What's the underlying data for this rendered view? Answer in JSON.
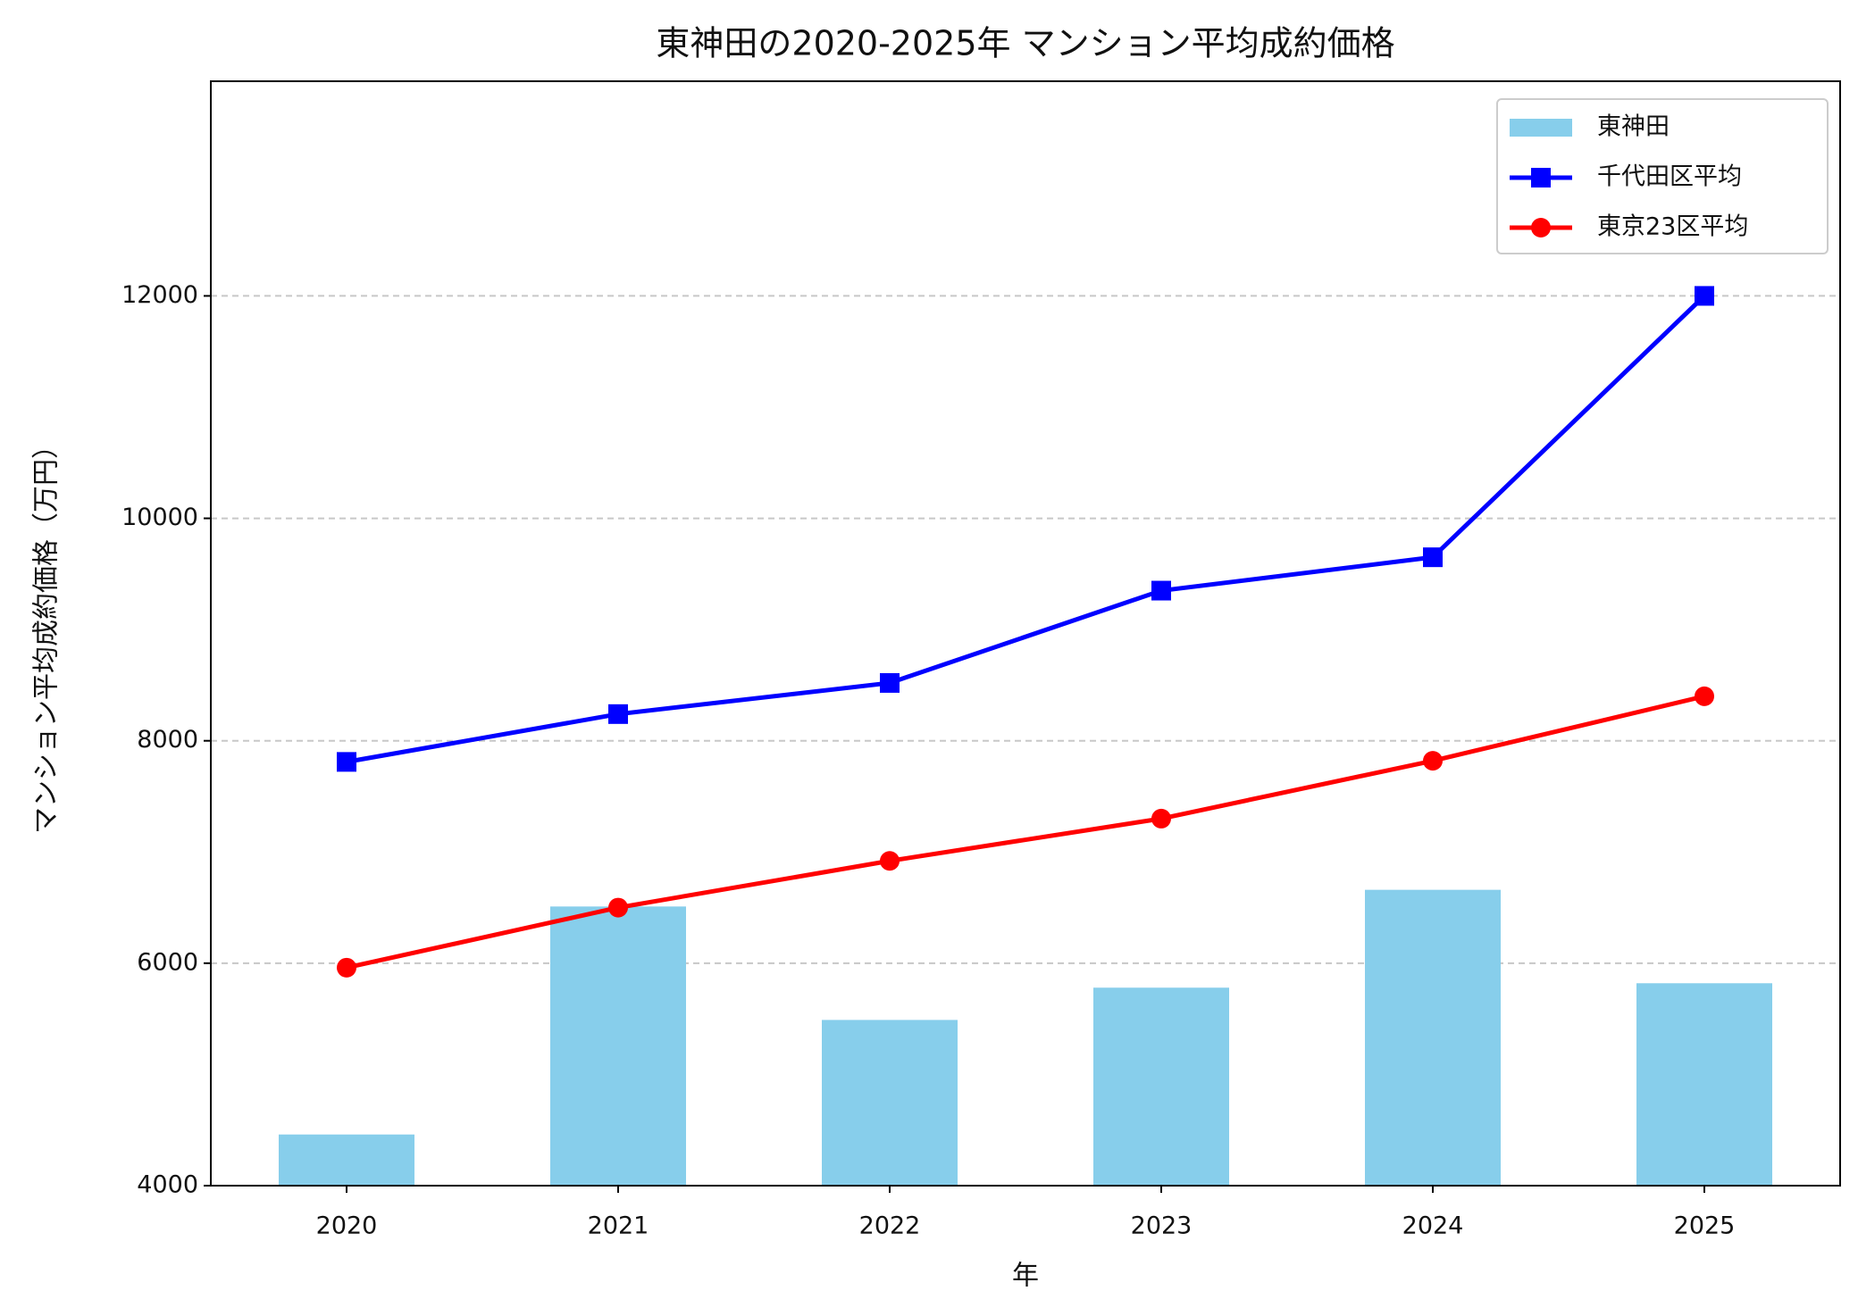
{
  "chart_data": {
    "type": "combo",
    "title": "東神田の2020-2025年 マンション平均成約価格",
    "xlabel": "年",
    "ylabel": "マンション平均成約価格（万円）",
    "categories": [
      "2020",
      "2021",
      "2022",
      "2023",
      "2024",
      "2025"
    ],
    "series": [
      {
        "name": "東神田",
        "type": "bar",
        "color": "#87ceeb",
        "values": [
          4460,
          6510,
          5490,
          5780,
          6660,
          5820
        ]
      },
      {
        "name": "千代田区平均",
        "type": "line",
        "marker": "square",
        "color": "#0000ff",
        "values": [
          7810,
          8240,
          8520,
          9350,
          9650,
          12000
        ]
      },
      {
        "name": "東京23区平均",
        "type": "line",
        "marker": "circle",
        "color": "#ff0000",
        "values": [
          5960,
          6500,
          6920,
          7300,
          7820,
          8400
        ]
      }
    ],
    "ylim": [
      4000,
      13930
    ],
    "yticks": [
      4000,
      6000,
      8000,
      10000,
      12000
    ],
    "grid": true,
    "legend": "upper right"
  }
}
